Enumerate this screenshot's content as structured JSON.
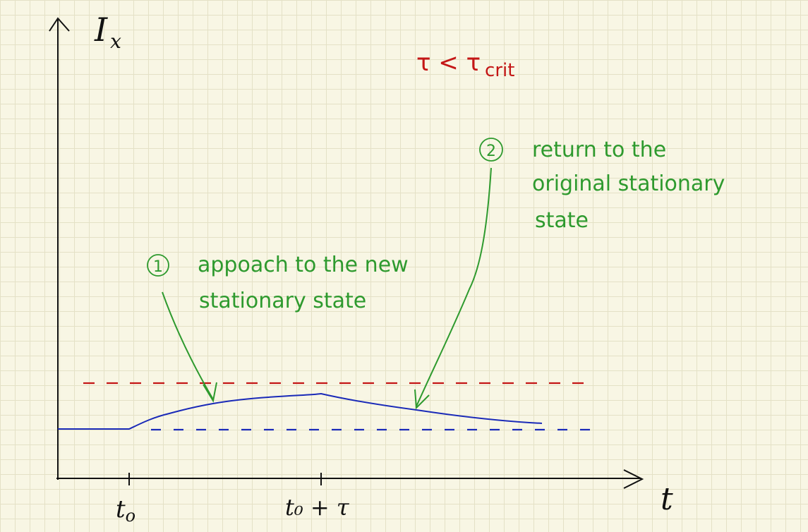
{
  "axes": {
    "y_label_main": "I",
    "y_label_sub": "x",
    "x_label": "t",
    "tick_t0_main": "t",
    "tick_t0_sub": "o",
    "tick_t0tau": "t₀ + τ"
  },
  "condition": {
    "lhs": "τ < τ",
    "sub": "crit"
  },
  "annotations": {
    "note1_number": "1",
    "note1_line1": "appoach to the new",
    "note1_line2": "stationary state",
    "note2_number": "2",
    "note2_line1": "return to the",
    "note2_line2": "original stationary",
    "note2_line3": "state"
  },
  "colors": {
    "ink": "#111111",
    "green": "#2e9a2e",
    "red": "#c41616",
    "blue": "#1a2ab8"
  }
}
